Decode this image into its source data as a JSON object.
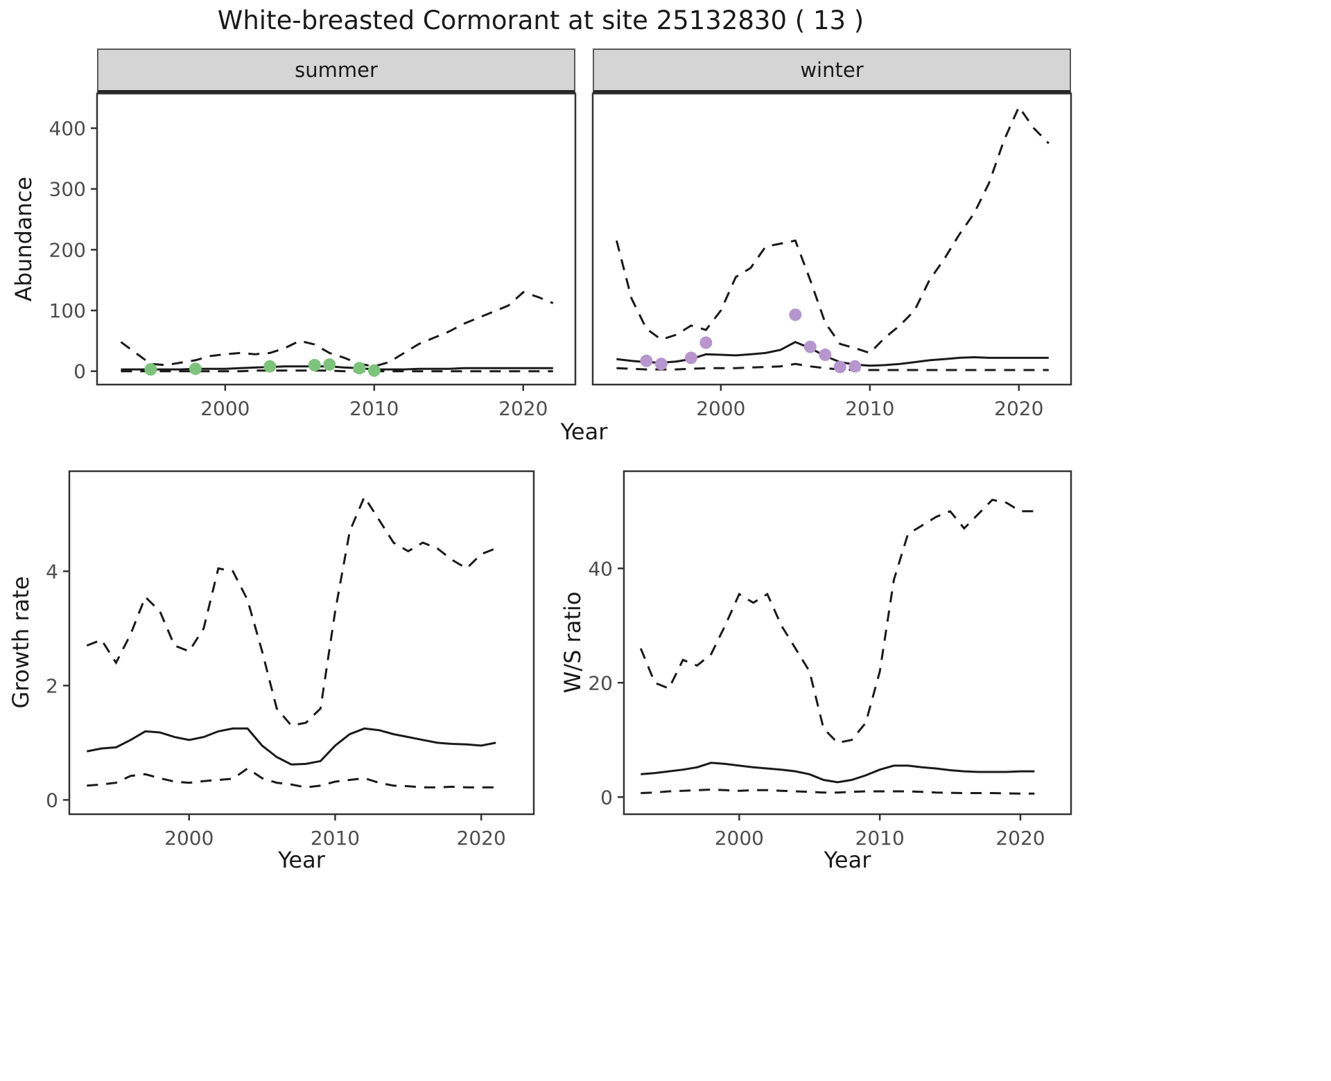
{
  "title": "White-breasted Cormorant at site 25132830 ( 13 )",
  "colors": {
    "line": "#1a1a1a",
    "points_summer": "#7cc47c",
    "points_winter": "#b795ce",
    "strip_background": "#d5d5d5",
    "panel_border": "#333333",
    "tick_text": "#4d4d4d"
  },
  "chart_data": [
    {
      "id": "abundance-summer",
      "type": "line",
      "facet": "summer",
      "xlabel": "Year",
      "ylabel": "Abundance",
      "xlim": [
        1991.4,
        2023.5
      ],
      "ylim": [
        -22,
        457
      ],
      "xticks": [
        2000,
        2010,
        2020
      ],
      "yticks": [
        0,
        100,
        200,
        300,
        400
      ],
      "grid": false,
      "legend": "none",
      "series": [
        {
          "name": "upper-ci",
          "type": "line",
          "dash": true,
          "x": [
            1993,
            1994,
            1995,
            1996,
            1997,
            1998,
            1999,
            2000,
            2001,
            2002,
            2003,
            2004,
            2005,
            2006,
            2007,
            2008,
            2009,
            2010,
            2011,
            2012,
            2013,
            2014,
            2015,
            2016,
            2017,
            2018,
            2019,
            2020,
            2021,
            2022
          ],
          "y": [
            48,
            30,
            12,
            10,
            14,
            18,
            25,
            28,
            30,
            28,
            30,
            38,
            50,
            44,
            30,
            22,
            12,
            8,
            15,
            30,
            45,
            55,
            65,
            78,
            88,
            98,
            108,
            130,
            122,
            112
          ]
        },
        {
          "name": "median",
          "type": "line",
          "dash": false,
          "x": [
            1993,
            1994,
            1995,
            1996,
            1997,
            1998,
            1999,
            2000,
            2001,
            2002,
            2003,
            2004,
            2005,
            2006,
            2007,
            2008,
            2009,
            2010,
            2011,
            2012,
            2013,
            2014,
            2015,
            2016,
            2017,
            2018,
            2019,
            2020,
            2021,
            2022
          ],
          "y": [
            3,
            3,
            3,
            3,
            3,
            4,
            4,
            4,
            5,
            6,
            7,
            8,
            8,
            8,
            8,
            6,
            5,
            3,
            3,
            3,
            4,
            4,
            4,
            5,
            5,
            5,
            5,
            5,
            5,
            5
          ]
        },
        {
          "name": "lower-ci",
          "type": "line",
          "dash": true,
          "x": [
            1993,
            1994,
            1995,
            1996,
            1997,
            1998,
            1999,
            2000,
            2001,
            2002,
            2003,
            2004,
            2005,
            2006,
            2007,
            2008,
            2009,
            2010,
            2011,
            2012,
            2013,
            2014,
            2015,
            2016,
            2017,
            2018,
            2019,
            2020,
            2021,
            2022
          ],
          "y": [
            0,
            0,
            0,
            0,
            0,
            0,
            0,
            0,
            0,
            1,
            1,
            1,
            1,
            1,
            1,
            0,
            0,
            0,
            0,
            0,
            0,
            0,
            0,
            0,
            0,
            0,
            0,
            0,
            0,
            0
          ]
        },
        {
          "name": "observed-counts",
          "type": "scatter",
          "color": "#7cc47c",
          "x": [
            1995,
            1998,
            2003,
            2006,
            2007,
            2009,
            2010
          ],
          "y": [
            3,
            4,
            8,
            10,
            11,
            5,
            1
          ]
        }
      ]
    },
    {
      "id": "abundance-winter",
      "type": "line",
      "facet": "winter",
      "xlabel": "Year",
      "ylabel": "Abundance",
      "xlim": [
        1991.4,
        2023.5
      ],
      "ylim": [
        -22,
        457
      ],
      "xticks": [
        2000,
        2010,
        2020
      ],
      "yticks": [
        0,
        100,
        200,
        300,
        400
      ],
      "grid": false,
      "legend": "none",
      "series": [
        {
          "name": "upper-ci",
          "type": "line",
          "dash": true,
          "x": [
            1993,
            1994,
            1995,
            1996,
            1997,
            1998,
            1999,
            2000,
            2001,
            2002,
            2003,
            2004,
            2005,
            2006,
            2007,
            2008,
            2009,
            2010,
            2011,
            2012,
            2013,
            2014,
            2015,
            2016,
            2017,
            2018,
            2019,
            2020,
            2021,
            2022
          ],
          "y": [
            215,
            120,
            70,
            52,
            60,
            75,
            68,
            100,
            155,
            170,
            205,
            210,
            215,
            150,
            80,
            45,
            38,
            30,
            55,
            75,
            100,
            150,
            185,
            225,
            260,
            310,
            380,
            435,
            400,
            375
          ]
        },
        {
          "name": "median",
          "type": "line",
          "dash": false,
          "x": [
            1993,
            1994,
            1995,
            1996,
            1997,
            1998,
            1999,
            2000,
            2001,
            2002,
            2003,
            2004,
            2005,
            2006,
            2007,
            2008,
            2009,
            2010,
            2011,
            2012,
            2013,
            2014,
            2015,
            2016,
            2017,
            2018,
            2019,
            2020,
            2021,
            2022
          ],
          "y": [
            20,
            17,
            15,
            14,
            16,
            20,
            28,
            27,
            26,
            28,
            30,
            35,
            48,
            38,
            25,
            15,
            11,
            9,
            10,
            12,
            15,
            18,
            20,
            22,
            23,
            22,
            22,
            22,
            22,
            22
          ]
        },
        {
          "name": "lower-ci",
          "type": "line",
          "dash": true,
          "x": [
            1993,
            1994,
            1995,
            1996,
            1997,
            1998,
            1999,
            2000,
            2001,
            2002,
            2003,
            2004,
            2005,
            2006,
            2007,
            2008,
            2009,
            2010,
            2011,
            2012,
            2013,
            2014,
            2015,
            2016,
            2017,
            2018,
            2019,
            2020,
            2021,
            2022
          ],
          "y": [
            5,
            4,
            3,
            3,
            3,
            4,
            5,
            5,
            5,
            6,
            7,
            8,
            12,
            8,
            5,
            3,
            2,
            2,
            2,
            2,
            2,
            2,
            2,
            2,
            2,
            2,
            2,
            2,
            2,
            2
          ]
        },
        {
          "name": "observed-counts",
          "type": "scatter",
          "color": "#b795ce",
          "x": [
            1995,
            1996,
            1998,
            1999,
            2005,
            2006,
            2007,
            2008,
            2009
          ],
          "y": [
            17,
            12,
            22,
            47,
            93,
            40,
            27,
            7,
            8
          ]
        }
      ]
    },
    {
      "id": "growth-rate",
      "type": "line",
      "facet": "",
      "xlabel": "Year",
      "ylabel": "Growth rate",
      "xlim": [
        1991.8,
        2023.6
      ],
      "ylim": [
        -0.25,
        5.75
      ],
      "xticks": [
        2000,
        2010,
        2020
      ],
      "yticks": [
        0,
        2,
        4
      ],
      "grid": false,
      "legend": "none",
      "series": [
        {
          "name": "upper-ci",
          "type": "line",
          "dash": true,
          "x": [
            1993,
            1994,
            1995,
            1996,
            1997,
            1998,
            1999,
            2000,
            2001,
            2002,
            2003,
            2004,
            2005,
            2006,
            2007,
            2008,
            2009,
            2010,
            2011,
            2012,
            2013,
            2014,
            2015,
            2016,
            2017,
            2018,
            2019,
            2020,
            2021
          ],
          "y": [
            2.7,
            2.8,
            2.4,
            2.9,
            3.55,
            3.3,
            2.7,
            2.6,
            3.0,
            4.05,
            4.0,
            3.5,
            2.6,
            1.6,
            1.3,
            1.35,
            1.6,
            3.3,
            4.7,
            5.3,
            4.9,
            4.5,
            4.35,
            4.5,
            4.4,
            4.2,
            4.05,
            4.3,
            4.4
          ]
        },
        {
          "name": "median",
          "type": "line",
          "dash": false,
          "x": [
            1993,
            1994,
            1995,
            1996,
            1997,
            1998,
            1999,
            2000,
            2001,
            2002,
            2003,
            2004,
            2005,
            2006,
            2007,
            2008,
            2009,
            2010,
            2011,
            2012,
            2013,
            2014,
            2015,
            2016,
            2017,
            2018,
            2019,
            2020,
            2021
          ],
          "y": [
            0.85,
            0.9,
            0.92,
            1.05,
            1.2,
            1.18,
            1.1,
            1.05,
            1.1,
            1.2,
            1.25,
            1.25,
            0.95,
            0.75,
            0.62,
            0.63,
            0.68,
            0.95,
            1.15,
            1.25,
            1.22,
            1.15,
            1.1,
            1.05,
            1.0,
            0.98,
            0.97,
            0.95,
            1.0
          ]
        },
        {
          "name": "lower-ci",
          "type": "line",
          "dash": true,
          "x": [
            1993,
            1994,
            1995,
            1996,
            1997,
            1998,
            1999,
            2000,
            2001,
            2002,
            2003,
            2004,
            2005,
            2006,
            2007,
            2008,
            2009,
            2010,
            2011,
            2012,
            2013,
            2014,
            2015,
            2016,
            2017,
            2018,
            2019,
            2020,
            2021
          ],
          "y": [
            0.25,
            0.27,
            0.3,
            0.42,
            0.45,
            0.38,
            0.32,
            0.3,
            0.33,
            0.35,
            0.37,
            0.55,
            0.38,
            0.3,
            0.27,
            0.22,
            0.25,
            0.32,
            0.35,
            0.38,
            0.3,
            0.25,
            0.24,
            0.22,
            0.22,
            0.23,
            0.22,
            0.22,
            0.22
          ]
        }
      ]
    },
    {
      "id": "ws-ratio",
      "type": "line",
      "facet": "",
      "xlabel": "Year",
      "ylabel": "W/S ratio",
      "xlim": [
        1991.8,
        2023.6
      ],
      "ylim": [
        -3,
        57
      ],
      "xticks": [
        2000,
        2010,
        2020
      ],
      "yticks": [
        0,
        20,
        40
      ],
      "grid": false,
      "legend": "none",
      "series": [
        {
          "name": "upper-ci",
          "type": "line",
          "dash": true,
          "x": [
            1993,
            1994,
            1995,
            1996,
            1997,
            1998,
            1999,
            2000,
            2001,
            2002,
            2003,
            2004,
            2005,
            2006,
            2007,
            2008,
            2009,
            2010,
            2011,
            2012,
            2013,
            2014,
            2015,
            2016,
            2017,
            2018,
            2019,
            2020,
            2021
          ],
          "y": [
            26,
            20,
            19,
            24,
            23,
            25,
            30,
            35.5,
            34,
            35.5,
            30,
            26,
            22,
            12,
            9.5,
            10,
            13,
            22,
            38,
            46,
            47.5,
            49,
            50,
            47,
            49.5,
            52,
            51.5,
            50,
            50
          ]
        },
        {
          "name": "median",
          "type": "line",
          "dash": false,
          "x": [
            1993,
            1994,
            1995,
            1996,
            1997,
            1998,
            1999,
            2000,
            2001,
            2002,
            2003,
            2004,
            2005,
            2006,
            2007,
            2008,
            2009,
            2010,
            2011,
            2012,
            2013,
            2014,
            2015,
            2016,
            2017,
            2018,
            2019,
            2020,
            2021
          ],
          "y": [
            4,
            4.2,
            4.5,
            4.8,
            5.2,
            6,
            5.8,
            5.5,
            5.2,
            5,
            4.8,
            4.5,
            4,
            3,
            2.6,
            3,
            3.8,
            4.8,
            5.5,
            5.5,
            5.2,
            5,
            4.7,
            4.5,
            4.4,
            4.4,
            4.4,
            4.5,
            4.5
          ]
        },
        {
          "name": "lower-ci",
          "type": "line",
          "dash": true,
          "x": [
            1993,
            1994,
            1995,
            1996,
            1997,
            1998,
            1999,
            2000,
            2001,
            2002,
            2003,
            2004,
            2005,
            2006,
            2007,
            2008,
            2009,
            2010,
            2011,
            2012,
            2013,
            2014,
            2015,
            2016,
            2017,
            2018,
            2019,
            2020,
            2021
          ],
          "y": [
            0.7,
            0.8,
            1,
            1.1,
            1.2,
            1.3,
            1.2,
            1.1,
            1.2,
            1.2,
            1.1,
            1,
            0.9,
            0.8,
            0.8,
            0.9,
            1,
            1,
            1,
            1,
            0.9,
            0.8,
            0.75,
            0.7,
            0.7,
            0.7,
            0.65,
            0.6,
            0.6
          ]
        }
      ]
    }
  ]
}
